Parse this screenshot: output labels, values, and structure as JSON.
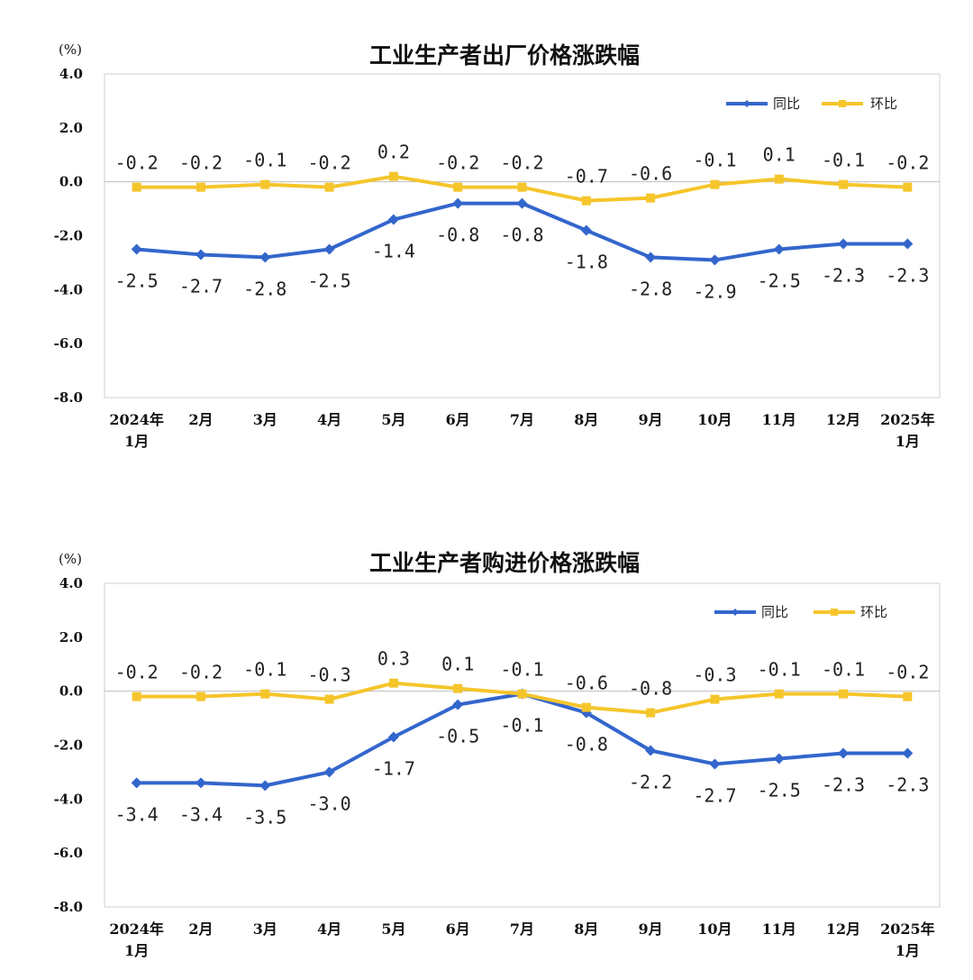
{
  "chart_data": [
    {
      "type": "line",
      "title": "工业生产者出厂价格涨跌幅",
      "unit_label": "(%)",
      "categories": [
        [
          "2024年",
          "1月"
        ],
        [
          "2月"
        ],
        [
          "3月"
        ],
        [
          "4月"
        ],
        [
          "5月"
        ],
        [
          "6月"
        ],
        [
          "7月"
        ],
        [
          "8月"
        ],
        [
          "9月"
        ],
        [
          "10月"
        ],
        [
          "11月"
        ],
        [
          "12月"
        ],
        [
          "2025年",
          "1月"
        ]
      ],
      "yticks": [
        "4.0",
        "2.0",
        "0.0",
        "-2.0",
        "-4.0",
        "-6.0",
        "-8.0"
      ],
      "ylim": [
        -8,
        4
      ],
      "legend_position": "top-right",
      "series": [
        {
          "name": "同比",
          "color": "#3366cc",
          "marker": "diamond",
          "values": [
            -2.5,
            -2.7,
            -2.8,
            -2.5,
            -1.4,
            -0.8,
            -0.8,
            -1.8,
            -2.8,
            -2.9,
            -2.5,
            -2.3,
            -2.3
          ],
          "labels": [
            "-2.5",
            "-2.7",
            "-2.8",
            "-2.5",
            "-1.4",
            "-0.8",
            "-0.8",
            "-1.8",
            "-2.8",
            "-2.9",
            "-2.5",
            "-2.3",
            "-2.3"
          ]
        },
        {
          "name": "环比",
          "color": "#f5c52b",
          "marker": "square",
          "values": [
            -0.2,
            -0.2,
            -0.1,
            -0.2,
            0.2,
            -0.2,
            -0.2,
            -0.7,
            -0.6,
            -0.1,
            0.1,
            -0.1,
            -0.2
          ],
          "labels": [
            "-0.2",
            "-0.2",
            "-0.1",
            "-0.2",
            "0.2",
            "-0.2",
            "-0.2",
            "-0.7",
            "-0.6",
            "-0.1",
            "0.1",
            "-0.1",
            "-0.2"
          ]
        }
      ]
    },
    {
      "type": "line",
      "title": "工业生产者购进价格涨跌幅",
      "unit_label": "(%)",
      "categories": [
        [
          "2024年",
          "1月"
        ],
        [
          "2月"
        ],
        [
          "3月"
        ],
        [
          "4月"
        ],
        [
          "5月"
        ],
        [
          "6月"
        ],
        [
          "7月"
        ],
        [
          "8月"
        ],
        [
          "9月"
        ],
        [
          "10月"
        ],
        [
          "11月"
        ],
        [
          "12月"
        ],
        [
          "2025年",
          "1月"
        ]
      ],
      "yticks": [
        "4.0",
        "2.0",
        "0.0",
        "-2.0",
        "-4.0",
        "-6.0",
        "-8.0"
      ],
      "ylim": [
        -8,
        4
      ],
      "legend_position": "top-right",
      "series": [
        {
          "name": "同比",
          "color": "#3366cc",
          "marker": "diamond",
          "values": [
            -3.4,
            -3.4,
            -3.5,
            -3.0,
            -1.7,
            -0.5,
            -0.1,
            -0.8,
            -2.2,
            -2.7,
            -2.5,
            -2.3,
            -2.3
          ],
          "labels": [
            "-3.4",
            "-3.4",
            "-3.5",
            "-3.0",
            "-1.7",
            "-0.5",
            "-0.1",
            "-0.8",
            "-2.2",
            "-2.7",
            "-2.5",
            "-2.3",
            "-2.3"
          ]
        },
        {
          "name": "环比",
          "color": "#f5c52b",
          "marker": "square",
          "values": [
            -0.2,
            -0.2,
            -0.1,
            -0.3,
            0.3,
            0.1,
            -0.1,
            -0.6,
            -0.8,
            -0.3,
            -0.1,
            -0.1,
            -0.2
          ],
          "labels": [
            "-0.2",
            "-0.2",
            "-0.1",
            "-0.3",
            "0.3",
            "0.1",
            "-0.1",
            "-0.6",
            "-0.8",
            "-0.3",
            "-0.1",
            "-0.1",
            "-0.2"
          ]
        }
      ]
    }
  ]
}
